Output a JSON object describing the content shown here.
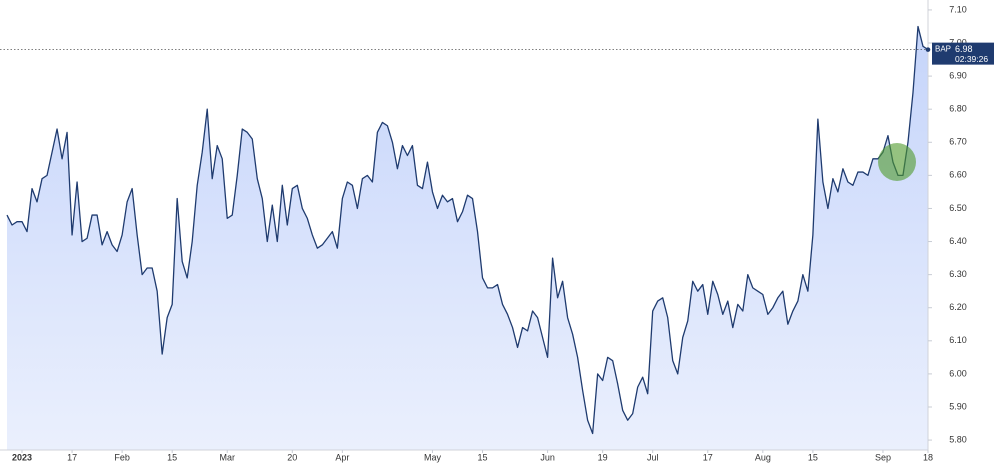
{
  "chart_data": {
    "type": "area",
    "series": [
      {
        "name": "BAP",
        "color": "#1f3b6f",
        "fill": "#c7d6fb",
        "values": [
          6.48,
          6.45,
          6.46,
          6.46,
          6.43,
          6.56,
          6.52,
          6.59,
          6.6,
          6.67,
          6.74,
          6.65,
          6.73,
          6.42,
          6.58,
          6.4,
          6.41,
          6.48,
          6.48,
          6.39,
          6.43,
          6.39,
          6.37,
          6.42,
          6.52,
          6.56,
          6.42,
          6.3,
          6.32,
          6.32,
          6.25,
          6.06,
          6.17,
          6.21,
          6.53,
          6.34,
          6.29,
          6.4,
          6.57,
          6.67,
          6.8,
          6.59,
          6.69,
          6.65,
          6.47,
          6.48,
          6.6,
          6.74,
          6.73,
          6.71,
          6.59,
          6.53,
          6.4,
          6.51,
          6.4,
          6.57,
          6.45,
          6.56,
          6.57,
          6.5,
          6.47,
          6.42,
          6.38,
          6.39,
          6.41,
          6.43,
          6.38,
          6.53,
          6.58,
          6.57,
          6.5,
          6.59,
          6.6,
          6.58,
          6.73,
          6.76,
          6.75,
          6.7,
          6.62,
          6.69,
          6.66,
          6.69,
          6.57,
          6.56,
          6.64,
          6.55,
          6.5,
          6.54,
          6.52,
          6.53,
          6.46,
          6.49,
          6.54,
          6.53,
          6.43,
          6.29,
          6.26,
          6.26,
          6.27,
          6.21,
          6.18,
          6.14,
          6.08,
          6.14,
          6.13,
          6.19,
          6.17,
          6.11,
          6.05,
          6.35,
          6.23,
          6.28,
          6.17,
          6.12,
          6.05,
          5.95,
          5.86,
          5.82,
          6.0,
          5.98,
          6.05,
          6.04,
          5.97,
          5.89,
          5.86,
          5.88,
          5.96,
          5.99,
          5.94,
          6.19,
          6.22,
          6.23,
          6.17,
          6.04,
          6.0,
          6.11,
          6.16,
          6.28,
          6.25,
          6.27,
          6.18,
          6.28,
          6.24,
          6.18,
          6.22,
          6.14,
          6.21,
          6.19,
          6.3,
          6.26,
          6.25,
          6.24,
          6.18,
          6.2,
          6.23,
          6.25,
          6.15,
          6.19,
          6.22,
          6.3,
          6.25,
          6.42,
          6.77,
          6.58,
          6.5,
          6.59,
          6.55,
          6.62,
          6.58,
          6.57,
          6.61,
          6.61,
          6.6,
          6.65,
          6.65,
          6.67,
          6.72,
          6.64,
          6.6,
          6.6,
          6.7,
          6.85,
          7.05,
          6.99,
          6.98
        ]
      }
    ],
    "categories": [
      null,
      null,
      null,
      "2023",
      null,
      null,
      null,
      null,
      null,
      null,
      null,
      null,
      null,
      "17",
      null,
      null,
      null,
      null,
      null,
      null,
      null,
      null,
      null,
      "Feb",
      null,
      null,
      null,
      null,
      null,
      null,
      null,
      null,
      null,
      "15",
      null,
      null,
      null,
      null,
      null,
      null,
      null,
      null,
      null,
      null,
      "Mar",
      null,
      null,
      null,
      null,
      null,
      null,
      null,
      null,
      null,
      null,
      null,
      null,
      "20",
      null,
      null,
      null,
      null,
      null,
      null,
      null,
      null,
      null,
      "Apr",
      null,
      null,
      null,
      null,
      null,
      null,
      null,
      null,
      null,
      null,
      null,
      null,
      null,
      null,
      null,
      null,
      null,
      "May",
      null,
      null,
      null,
      null,
      null,
      null,
      null,
      null,
      null,
      "15",
      null,
      null,
      null,
      null,
      null,
      null,
      null,
      null,
      null,
      null,
      null,
      null,
      "Jun",
      null,
      null,
      null,
      null,
      null,
      null,
      null,
      null,
      null,
      null,
      "19",
      null,
      null,
      null,
      null,
      null,
      null,
      null,
      null,
      null,
      "Jul",
      null,
      null,
      null,
      null,
      null,
      null,
      null,
      null,
      null,
      null,
      "17",
      null,
      null,
      null,
      null,
      null,
      null,
      null,
      null,
      null,
      null,
      "Aug",
      null,
      null,
      null,
      null,
      null,
      null,
      null,
      null,
      null,
      "15",
      null,
      null,
      null,
      null,
      null,
      null,
      null,
      null,
      null,
      null,
      null,
      null,
      null,
      "Sep",
      null,
      null,
      null,
      null,
      null,
      null,
      null,
      null,
      "18"
    ],
    "ylim": [
      5.77,
      7.13
    ],
    "yticks": [
      {
        "value": 5.8,
        "label": "5.80"
      },
      {
        "value": 5.9,
        "label": "5.90"
      },
      {
        "value": 6.0,
        "label": "6.00"
      },
      {
        "value": 6.1,
        "label": "6.10"
      },
      {
        "value": 6.2,
        "label": "6.20"
      },
      {
        "value": 6.3,
        "label": "6.30"
      },
      {
        "value": 6.4,
        "label": "6.40"
      },
      {
        "value": 6.5,
        "label": "6.50"
      },
      {
        "value": 6.6,
        "label": "6.60"
      },
      {
        "value": 6.7,
        "label": "6.70"
      },
      {
        "value": 6.8,
        "label": "6.80"
      },
      {
        "value": 6.9,
        "label": "6.90"
      },
      {
        "value": 7.0,
        "label": "7.00"
      },
      {
        "value": 7.1,
        "label": "7.10"
      }
    ],
    "grid": false,
    "last_price": {
      "symbol": "BAP",
      "value": 6.98,
      "time": "02:39:26",
      "color": "#1f3b6f"
    }
  }
}
